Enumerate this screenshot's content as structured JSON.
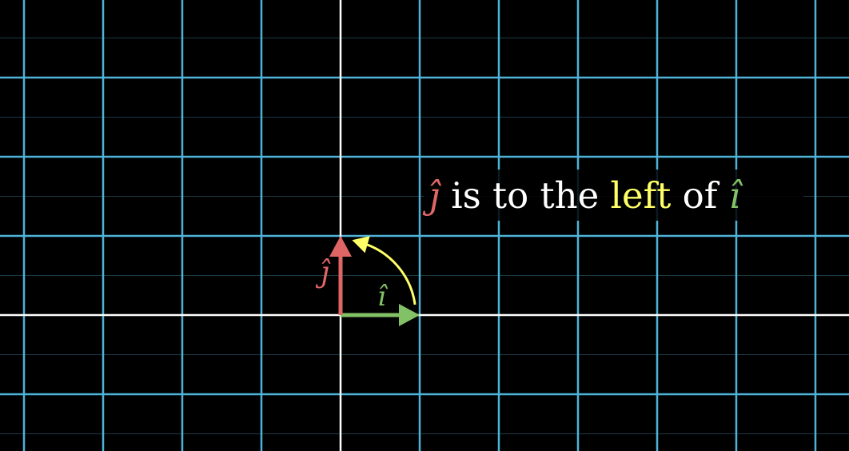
{
  "colors": {
    "background": "#000000",
    "grid_major": "#4fb3d9",
    "grid_minor": "#1c3a47",
    "axes": "#ffffff",
    "i_hat": "#83c167",
    "j_hat": "#e06666",
    "rotation_arrow": "#ffff66",
    "caption_text": "#ffffff",
    "caption_highlight": "#ffff66"
  },
  "grid": {
    "x_range": [
      -4,
      6
    ],
    "y_range": [
      -1,
      4
    ],
    "major_step": 1,
    "minor_step": 0.5
  },
  "vectors": {
    "i_hat": {
      "x": 1,
      "y": 0,
      "label": "î"
    },
    "j_hat": {
      "x": 0,
      "y": 1,
      "label": "ĵ"
    }
  },
  "rotation_arrow": {
    "from_angle_deg": 0,
    "to_angle_deg": 90,
    "radius": 0.95,
    "icon": "counterclockwise-arrow-icon"
  },
  "caption": {
    "j_symbol": "ĵ",
    "text_before": " is to the ",
    "highlight": "left",
    "text_after": " of ",
    "i_symbol": "î"
  }
}
